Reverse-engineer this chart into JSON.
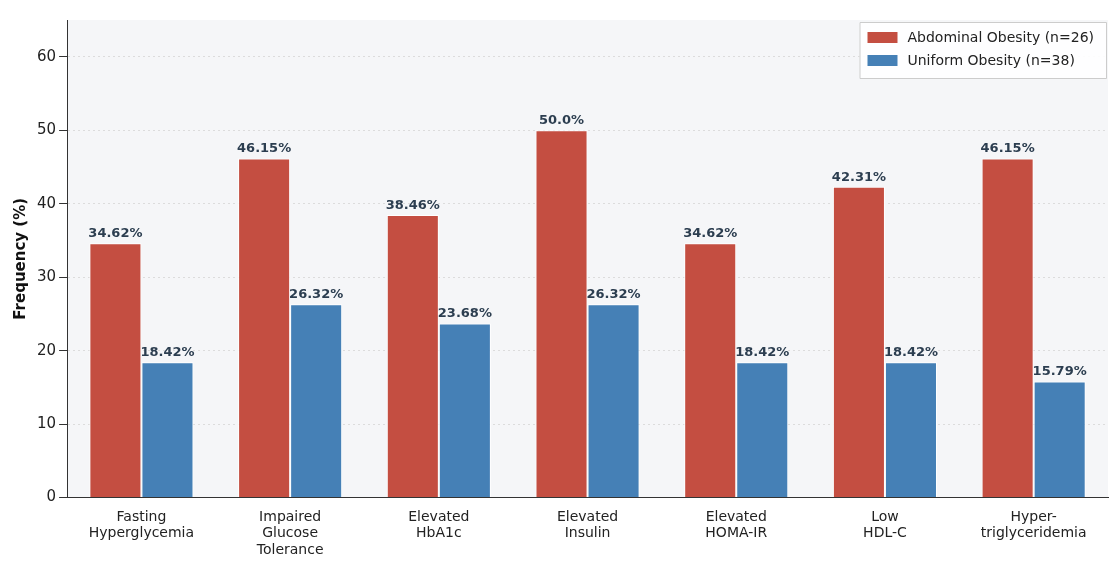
{
  "chart_data": {
    "type": "bar",
    "ylabel": "Frequency (%)",
    "categories": [
      "Fasting\nHyperglycemia",
      "Impaired\nGlucose\nTolerance",
      "Elevated\nHbA1c",
      "Elevated\nInsulin",
      "Elevated\nHOMA-IR",
      "Low\nHDL-C",
      "Hyper-\ntriglyceridemia"
    ],
    "series": [
      {
        "name": "Abdominal Obesity (n=26)",
        "color": "#c44e41",
        "values": [
          34.62,
          46.15,
          38.46,
          50.0,
          34.62,
          42.31,
          46.15
        ],
        "value_labels": [
          "34.62%",
          "46.15%",
          "38.46%",
          "50.0%",
          "34.62%",
          "42.31%",
          "46.15%"
        ]
      },
      {
        "name": "Uniform Obesity (n=38)",
        "color": "#4580b6",
        "values": [
          18.42,
          26.32,
          23.68,
          26.32,
          18.42,
          18.42,
          15.79
        ],
        "value_labels": [
          "18.42%",
          "26.32%",
          "23.68%",
          "26.32%",
          "18.42%",
          "18.42%",
          "15.79%"
        ]
      }
    ],
    "ylim": [
      0,
      65
    ],
    "yticks": [
      0,
      10,
      20,
      30,
      40,
      50,
      60
    ],
    "grid": "y",
    "legend": "top right"
  }
}
